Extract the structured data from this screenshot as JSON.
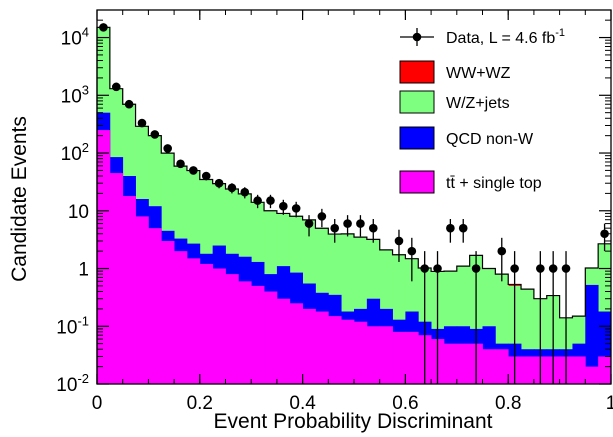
{
  "chart_data": {
    "type": "stacked-histogram",
    "xlabel": "Event Probability Discriminant",
    "ylabel": "Candidate Events",
    "xlim": [
      0,
      1
    ],
    "ylim": [
      0.01,
      30000
    ],
    "yscale": "log",
    "grid": false,
    "legend_position": "top-right",
    "x_ticks": [
      {
        "value": 0,
        "label": "0"
      },
      {
        "value": 0.2,
        "label": "0.2"
      },
      {
        "value": 0.4,
        "label": "0.4"
      },
      {
        "value": 0.6,
        "label": "0.6"
      },
      {
        "value": 0.8,
        "label": "0.8"
      },
      {
        "value": 1,
        "label": "1"
      }
    ],
    "y_ticks": [
      {
        "value": 0.01,
        "base": "10",
        "exp": "-2",
        "plain": ""
      },
      {
        "value": 0.1,
        "base": "10",
        "exp": "-1",
        "plain": ""
      },
      {
        "value": 1,
        "base": "",
        "exp": "",
        "plain": "1"
      },
      {
        "value": 10,
        "base": "",
        "exp": "",
        "plain": "10"
      },
      {
        "value": 100,
        "base": "10",
        "exp": "2",
        "plain": ""
      },
      {
        "value": 1000,
        "base": "10",
        "exp": "3",
        "plain": ""
      },
      {
        "value": 10000,
        "base": "10",
        "exp": "4",
        "plain": ""
      }
    ],
    "bin_width": 0.025,
    "bins_left": [
      0,
      0.025,
      0.05,
      0.075,
      0.1,
      0.125,
      0.15,
      0.175,
      0.2,
      0.225,
      0.25,
      0.275,
      0.3,
      0.325,
      0.35,
      0.375,
      0.4,
      0.425,
      0.45,
      0.475,
      0.5,
      0.525,
      0.55,
      0.575,
      0.6,
      0.625,
      0.65,
      0.675,
      0.7,
      0.725,
      0.75,
      0.775,
      0.8,
      0.825,
      0.85,
      0.875,
      0.9,
      0.925,
      0.95,
      0.975
    ],
    "stack": [
      {
        "name": "tt̄ + single top",
        "color": "#ff00ff",
        "values": [
          250,
          45,
          18,
          8,
          5,
          3,
          2,
          1.5,
          1.2,
          1,
          0.8,
          0.6,
          0.5,
          0.4,
          0.3,
          0.25,
          0.2,
          0.18,
          0.15,
          0.13,
          0.12,
          0.1,
          0.1,
          0.08,
          0.08,
          0.07,
          0.06,
          0.05,
          0.05,
          0.05,
          0.04,
          0.04,
          0.03,
          0.03,
          0.03,
          0.03,
          0.03,
          0.03,
          0.02,
          0.03
        ]
      },
      {
        "name": "QCD non-W",
        "color": "#0000ff",
        "values": [
          250,
          40,
          22,
          8,
          7,
          1.5,
          1.3,
          1.2,
          0.6,
          1.5,
          1,
          1,
          0.8,
          0.4,
          0.8,
          0.6,
          0.35,
          0.2,
          0.2,
          0.05,
          0.08,
          0.2,
          0.1,
          0.05,
          0.1,
          0.05,
          0.03,
          0.05,
          0.05,
          0.04,
          0.06,
          0.01,
          0.02,
          0.01,
          0.01,
          0.01,
          0.01,
          0.02,
          0.5,
          0.15
        ]
      },
      {
        "name": "W/Z+jets",
        "color": "#7fff7f",
        "values": [
          14500,
          1215,
          660,
          274,
          188,
          95,
          56,
          47,
          33,
          27,
          22,
          18,
          12.7,
          9.2,
          7.9,
          7.2,
          6.4,
          4.6,
          3.6,
          3.8,
          3.3,
          2.9,
          1.9,
          1.6,
          1.3,
          0.9,
          0.8,
          0.8,
          1,
          1.6,
          0.9,
          0.75,
          0.45,
          0.4,
          0.26,
          0.3,
          0.1,
          0.1,
          0.5,
          2.5
        ]
      },
      {
        "name": "WW+WZ",
        "color": "#ff0000",
        "values": [
          0,
          0,
          0,
          0,
          0,
          0,
          0,
          0,
          0,
          0,
          0,
          0,
          0,
          0,
          0,
          0,
          0,
          0,
          0,
          0,
          0,
          0,
          0,
          0,
          0,
          0,
          0,
          0,
          0,
          0,
          0,
          0,
          0.03,
          0,
          0,
          0,
          0,
          0,
          0,
          0
        ]
      }
    ],
    "data_series": {
      "name": "Data, L = 4.6 fb-1",
      "x": [
        0.0125,
        0.0375,
        0.0625,
        0.0875,
        0.1125,
        0.1375,
        0.1625,
        0.1875,
        0.2125,
        0.2375,
        0.2625,
        0.2875,
        0.3125,
        0.3375,
        0.3625,
        0.3875,
        0.4125,
        0.4375,
        0.4625,
        0.4875,
        0.5125,
        0.5375,
        0.5625,
        0.5875,
        0.6125,
        0.6375,
        0.6625,
        0.6875,
        0.7125,
        0.7375,
        0.7625,
        0.7875,
        0.8125,
        0.8375,
        0.8625,
        0.8875,
        0.9125,
        0.9375,
        0.9625,
        0.9875
      ],
      "y": [
        15000,
        1400,
        700,
        330,
        210,
        120,
        65,
        50,
        40,
        30,
        25,
        21,
        15,
        15,
        12,
        11,
        6,
        8,
        5,
        6,
        6,
        5,
        0,
        3,
        2,
        1,
        1,
        5,
        5,
        1,
        0,
        2,
        1,
        0,
        1,
        1,
        1,
        0,
        0,
        4
      ],
      "err": [
        122,
        37,
        26,
        18,
        14,
        11,
        8,
        7,
        6.3,
        5.5,
        5,
        4.6,
        3.9,
        3.9,
        3.5,
        3.3,
        2.4,
        2.8,
        2.2,
        2.4,
        2.4,
        2.2,
        0,
        1.7,
        1.4,
        1,
        1,
        2.2,
        2.2,
        1,
        0,
        1.4,
        1,
        0,
        1,
        1,
        1,
        0,
        0,
        2
      ]
    },
    "legend": [
      {
        "label_main": "Data, L = 4.6 fb",
        "label_sup": "-1",
        "kind": "marker"
      },
      {
        "label_main": "WW+WZ",
        "label_sup": "",
        "kind": "box",
        "color": "#ff0000"
      },
      {
        "label_main": "W/Z+jets",
        "label_sup": "",
        "kind": "box",
        "color": "#7fff7f"
      },
      {
        "label_main": "QCD non-W",
        "label_sup": "",
        "kind": "box",
        "color": "#0000ff"
      },
      {
        "label_main": "tt̄ + single top",
        "label_sup": "",
        "kind": "box",
        "color": "#ff00ff"
      }
    ]
  }
}
